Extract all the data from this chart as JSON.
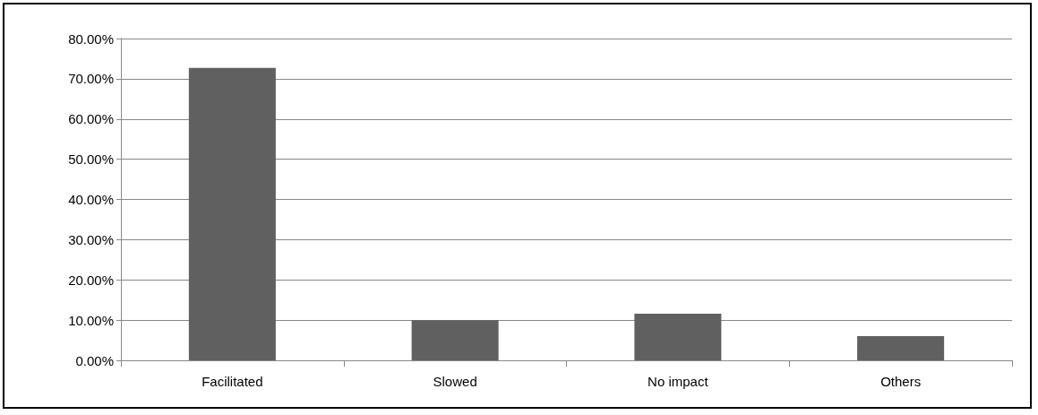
{
  "chart_data": {
    "type": "bar",
    "categories": [
      "Facilitated",
      "Slowed",
      "No impact",
      "Others"
    ],
    "values": [
      72.7,
      10,
      11.6,
      6
    ],
    "color": "#606060",
    "ylim": [
      0,
      80
    ],
    "yticks": [
      {
        "value": 0,
        "label": "0.00%"
      },
      {
        "value": 10,
        "label": "10.00%"
      },
      {
        "value": 20,
        "label": "20.00%"
      },
      {
        "value": 30,
        "label": "30.00%"
      },
      {
        "value": 40,
        "label": "40.00%"
      },
      {
        "value": 50,
        "label": "50.00%"
      },
      {
        "value": 60,
        "label": "60.00%"
      },
      {
        "value": 70,
        "label": "70.00%"
      },
      {
        "value": 80,
        "label": "80.00%"
      }
    ],
    "grid": "y"
  }
}
